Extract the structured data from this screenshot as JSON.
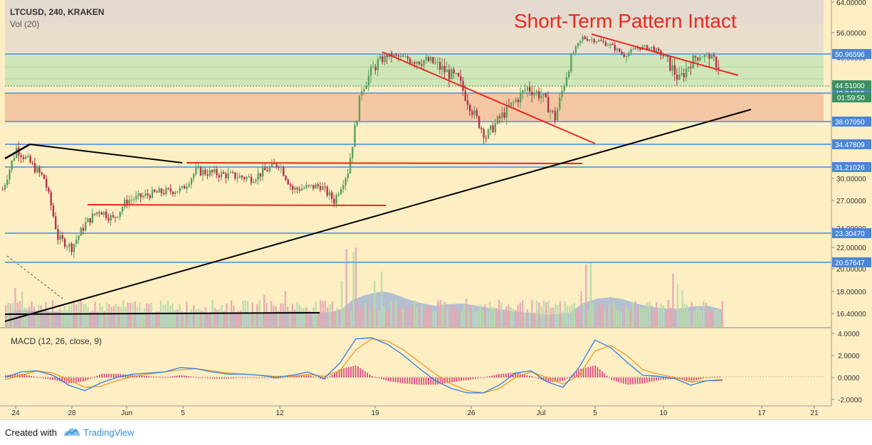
{
  "header": {
    "symbol_line": "LTCUSD, 240, KRAKEN",
    "vol_label": "Vol (20)",
    "annotation": "Short-Term Pattern Intact"
  },
  "macd": {
    "label": "MACD (12, 26, close, 9)"
  },
  "footer": {
    "created_with": "Created with",
    "brand": "TradingView"
  },
  "colors": {
    "background": "#fdeec3",
    "green_band": "#cfe6b8",
    "orange_band": "#f3c7a3",
    "gray_band": "#e1d7cf",
    "blue_lines": "#6fa3de",
    "red_lines": "#e8281f",
    "black_lines": "#000000",
    "up_candle": "#5aa05e",
    "down_candle": "#b5314b",
    "macd_line": "#2e7ee6",
    "signal_line": "#f09a24",
    "histogram": "#d4327a",
    "price_tag_green": "#3c8f60",
    "price_tag_blue": "#4b86d6"
  },
  "chart_data": [
    {
      "type": "candlestick",
      "title": "LTCUSD, 240, KRAKEN",
      "annotation": "Short-Term Pattern Intact",
      "x_tick_labels": [
        "24",
        "28",
        "Jun",
        "5",
        "12",
        "19",
        "26",
        "Jul",
        "5",
        "10",
        "17",
        "21"
      ],
      "y_tick_labels": [
        "64.00000",
        "56.00000",
        "46.00000",
        "30.00000",
        "27.00000",
        "24.00000",
        "22.00000",
        "20.00000",
        "18.00000",
        "16.40000"
      ],
      "horizontal_levels": [
        "50.96596",
        "43.94355",
        "38.07050",
        "34.47809",
        "31.21026",
        "23.30470",
        "20.57647"
      ],
      "price_tags": [
        {
          "label": "44.51000",
          "kind": "last"
        },
        {
          "label": "01:59:50",
          "kind": "countdown"
        }
      ],
      "trend_lines": [
        {
          "color": "red",
          "role": "descending resistance (short-term)",
          "from": [
            "Jul 4",
            55.5
          ],
          "to": [
            "Jul 14",
            47.5
          ]
        },
        {
          "color": "red",
          "role": "descending channel top",
          "from": [
            "Jun 20",
            51.5
          ],
          "to": [
            "Jul 4",
            35.0
          ]
        },
        {
          "color": "red",
          "role": "horizontal resistance",
          "from": [
            "Jun 6",
            32.2
          ],
          "to": [
            "Jul 3",
            32.2
          ]
        },
        {
          "color": "red",
          "role": "horizontal support",
          "from": [
            "May 29",
            26.5
          ],
          "to": [
            "Jun 17",
            26.5
          ]
        },
        {
          "color": "black",
          "role": "rising support",
          "from": [
            "May 23",
            16.0
          ],
          "to": [
            "Jul 15",
            41.0
          ]
        },
        {
          "color": "black",
          "role": "descending line",
          "from": [
            "May 23",
            34.5
          ],
          "to": [
            "Jun 5",
            31.8
          ]
        },
        {
          "color": "black",
          "role": "horizontal volume line",
          "from": [
            "May 23",
            16.4
          ],
          "to": [
            "Jun 15",
            16.4
          ]
        }
      ],
      "bands": [
        {
          "name": "gray zone",
          "from": 51.0,
          "to": 56.5
        },
        {
          "name": "green zone",
          "from": 44.5,
          "to": 51.0
        },
        {
          "name": "orange zone",
          "from": 38.0,
          "to": 44.0
        }
      ],
      "close_path": [
        [
          "May 23",
          28.5
        ],
        [
          "May 24",
          34.0
        ],
        [
          "May 25",
          32.0
        ],
        [
          "May 26",
          30.0
        ],
        [
          "May 27",
          23.0
        ],
        [
          "May 28",
          22.0
        ],
        [
          "May 29",
          24.5
        ],
        [
          "May 30",
          26.0
        ],
        [
          "May 31",
          25.0
        ],
        [
          "Jun 1",
          27.0
        ],
        [
          "Jun 3",
          28.0
        ],
        [
          "Jun 5",
          28.5
        ],
        [
          "Jun 6",
          31.0
        ],
        [
          "Jun 8",
          30.5
        ],
        [
          "Jun 10",
          30.0
        ],
        [
          "Jun 12",
          32.0
        ],
        [
          "Jun 13",
          28.5
        ],
        [
          "Jun 15",
          29.0
        ],
        [
          "Jun 16",
          27.0
        ],
        [
          "Jun 17",
          31.0
        ],
        [
          "Jun 18",
          42.0
        ],
        [
          "Jun 19",
          45.0
        ],
        [
          "Jun 20",
          47.0
        ],
        [
          "Jun 21",
          46.0
        ],
        [
          "Jun 23",
          45.5
        ],
        [
          "Jun 25",
          43.0
        ],
        [
          "Jun 26",
          39.0
        ],
        [
          "Jun 27",
          35.5
        ],
        [
          "Jun 28",
          38.0
        ],
        [
          "Jun 30",
          42.0
        ],
        [
          "Jul 1",
          41.0
        ],
        [
          "Jul 2",
          38.0
        ],
        [
          "Jul 3",
          45.0
        ],
        [
          "Jul 4",
          54.0
        ],
        [
          "Jul 5",
          53.0
        ],
        [
          "Jul 6",
          51.0
        ],
        [
          "Jul 7",
          47.0
        ],
        [
          "Jul 8",
          50.0
        ],
        [
          "Jul 9",
          50.0
        ],
        [
          "Jul 10",
          46.0
        ],
        [
          "Jul 11",
          43.0
        ],
        [
          "Jul 12",
          46.0
        ],
        [
          "Jul 13",
          47.0
        ],
        [
          "Jul 14",
          44.5
        ]
      ]
    },
    {
      "type": "line",
      "title": "MACD (12, 26, close, 9)",
      "y_tick_labels": [
        "4.0000",
        "2.0000",
        "0.0000",
        "-2.0000"
      ],
      "ylim": [
        -2.6,
        4.2
      ],
      "series": [
        {
          "name": "MACD",
          "values": [
            0.0,
            0.5,
            0.6,
            0.2,
            -0.7,
            -1.2,
            -0.5,
            0.0,
            0.3,
            0.4,
            0.5,
            0.9,
            0.8,
            0.5,
            0.3,
            0.3,
            0.2,
            0.0,
            0.2,
            0.5,
            -0.1,
            1.3,
            3.5,
            3.6,
            3.0,
            2.0,
            0.8,
            -0.3,
            -1.0,
            -1.4,
            -1.4,
            -0.7,
            0.4,
            0.6,
            -0.4,
            -0.9,
            0.9,
            3.4,
            2.7,
            1.4,
            0.2,
            0.1,
            -0.1,
            -0.7,
            -0.3,
            -0.2
          ]
        },
        {
          "name": "Signal",
          "values": [
            -0.2,
            0.2,
            0.6,
            0.4,
            -0.2,
            -0.9,
            -0.8,
            -0.3,
            0.1,
            0.3,
            0.5,
            0.7,
            0.8,
            0.6,
            0.4,
            0.3,
            0.2,
            0.1,
            0.1,
            0.3,
            0.1,
            0.6,
            2.5,
            3.5,
            3.3,
            2.5,
            1.4,
            0.3,
            -0.6,
            -1.2,
            -1.4,
            -1.0,
            0.0,
            0.5,
            0.0,
            -0.6,
            0.2,
            2.4,
            2.9,
            2.0,
            0.7,
            0.3,
            0.0,
            -0.4,
            -0.3,
            -0.3
          ]
        }
      ],
      "histogram_range": [
        -0.8,
        1.0
      ]
    }
  ]
}
